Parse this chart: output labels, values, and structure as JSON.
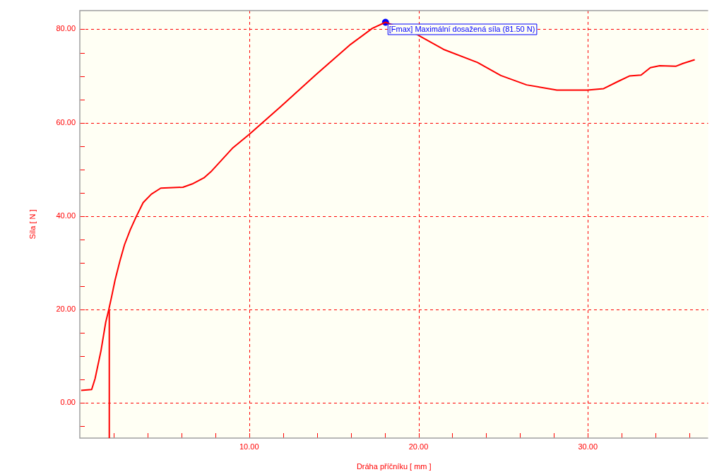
{
  "chart_data": {
    "type": "line",
    "xlabel": "Dráha příčníku [ mm ]",
    "ylabel": "Síla [ N ]",
    "xlim": [
      0,
      37.1
    ],
    "ylim": [
      -7.5,
      84
    ],
    "xticks": [
      {
        "value": 2,
        "label": null
      },
      {
        "value": 4,
        "label": null
      },
      {
        "value": 6,
        "label": null
      },
      {
        "value": 8,
        "label": null
      },
      {
        "value": 10,
        "label": "10.00"
      },
      {
        "value": 12,
        "label": null
      },
      {
        "value": 14,
        "label": null
      },
      {
        "value": 16,
        "label": null
      },
      {
        "value": 18,
        "label": null
      },
      {
        "value": 20,
        "label": "20.00"
      },
      {
        "value": 22,
        "label": null
      },
      {
        "value": 24,
        "label": null
      },
      {
        "value": 26,
        "label": null
      },
      {
        "value": 28,
        "label": null
      },
      {
        "value": 30,
        "label": "30.00"
      },
      {
        "value": 32,
        "label": null
      },
      {
        "value": 34,
        "label": null
      },
      {
        "value": 36,
        "label": null
      }
    ],
    "yticks": [
      {
        "value": -5,
        "label": null
      },
      {
        "value": 0,
        "label": "0.00"
      },
      {
        "value": 5,
        "label": null
      },
      {
        "value": 10,
        "label": null
      },
      {
        "value": 15,
        "label": null
      },
      {
        "value": 20,
        "label": "20.00"
      },
      {
        "value": 25,
        "label": null
      },
      {
        "value": 30,
        "label": null
      },
      {
        "value": 35,
        "label": null
      },
      {
        "value": 40,
        "label": "40.00"
      },
      {
        "value": 45,
        "label": null
      },
      {
        "value": 50,
        "label": null
      },
      {
        "value": 55,
        "label": null
      },
      {
        "value": 60,
        "label": "60.00"
      },
      {
        "value": 65,
        "label": null
      },
      {
        "value": 70,
        "label": null
      },
      {
        "value": 75,
        "label": null
      },
      {
        "value": 80,
        "label": "80.00"
      }
    ],
    "grid": true,
    "line_style": "solid",
    "series": [
      {
        "marker": "none",
        "color": "#ff0000",
        "x": [
          0.08,
          0.7,
          0.9,
          1.25,
          1.53,
          1.71,
          1.88,
          2.08,
          2.36,
          2.64,
          2.98,
          3.33,
          3.74,
          4.22,
          4.78,
          6.09,
          6.64,
          7.33,
          7.74,
          9,
          10,
          11.88,
          13.95,
          16,
          17.27,
          18.05,
          19.89,
          21.54,
          23.48,
          24.86,
          26.38,
          28.17,
          29.97,
          30.93,
          31.76,
          32.45,
          33.14,
          33.69,
          34.24,
          35.21,
          35.62,
          36.31
        ],
        "values": [
          2.7,
          2.9,
          5.2,
          11.2,
          17.3,
          20,
          22.8,
          26.3,
          30.3,
          33.9,
          37.1,
          39.9,
          42.9,
          44.7,
          46,
          46.2,
          46.9,
          48.2,
          49.5,
          54.5,
          57.5,
          63.5,
          70.3,
          76.8,
          80.2,
          81.5,
          78.9,
          75.6,
          72.9,
          70.1,
          68.1,
          67,
          67,
          67.3,
          68.8,
          70,
          70.2,
          71.8,
          72.2,
          72.1,
          72.7,
          73.5
        ]
      },
      {
        "marker": "none",
        "color": "#ff0000",
        "x": [
          1.74,
          1.74
        ],
        "values": [
          -7.5,
          20
        ]
      },
      {
        "type": "scatter",
        "marker": "circle",
        "color": "#0000ff",
        "x": [
          18.05
        ],
        "values": [
          81.5
        ]
      }
    ],
    "annotations": [
      {
        "text": "[Fmax] Maximální dosažená síla (81.50 N)",
        "x": 18.05,
        "y": 81.5
      }
    ]
  }
}
